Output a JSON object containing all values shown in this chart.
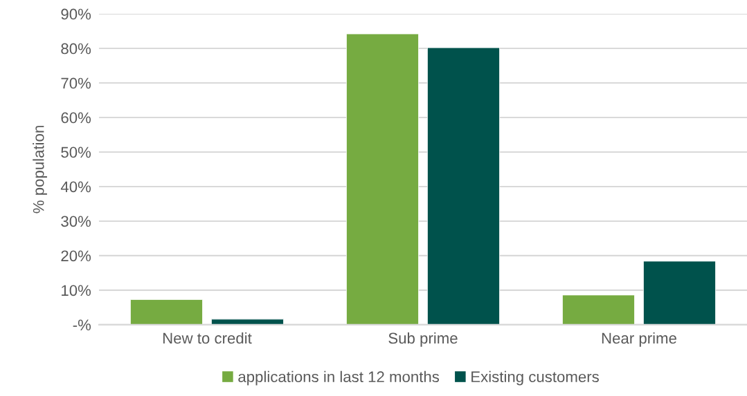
{
  "chart_data": {
    "type": "bar",
    "ylabel": "% population",
    "categories": [
      "New to credit",
      "Sub prime",
      "Near prime"
    ],
    "series": [
      {
        "name": "applications in last 12 months",
        "color": "#76ab41",
        "values": [
          7.3,
          84.2,
          8.6
        ]
      },
      {
        "name": "Existing customers",
        "color": "#00524c",
        "values": [
          1.6,
          80.2,
          18.4
        ]
      }
    ],
    "ylim": [
      0,
      90
    ],
    "yticks": [
      {
        "value": 0,
        "label": "-%"
      },
      {
        "value": 10,
        "label": "10%"
      },
      {
        "value": 20,
        "label": "20%"
      },
      {
        "value": 30,
        "label": "30%"
      },
      {
        "value": 40,
        "label": "40%"
      },
      {
        "value": 50,
        "label": "50%"
      },
      {
        "value": 60,
        "label": "60%"
      },
      {
        "value": 70,
        "label": "70%"
      },
      {
        "value": 80,
        "label": "80%"
      },
      {
        "value": 90,
        "label": "90%"
      }
    ],
    "grid": "y",
    "legend": "bottom"
  }
}
